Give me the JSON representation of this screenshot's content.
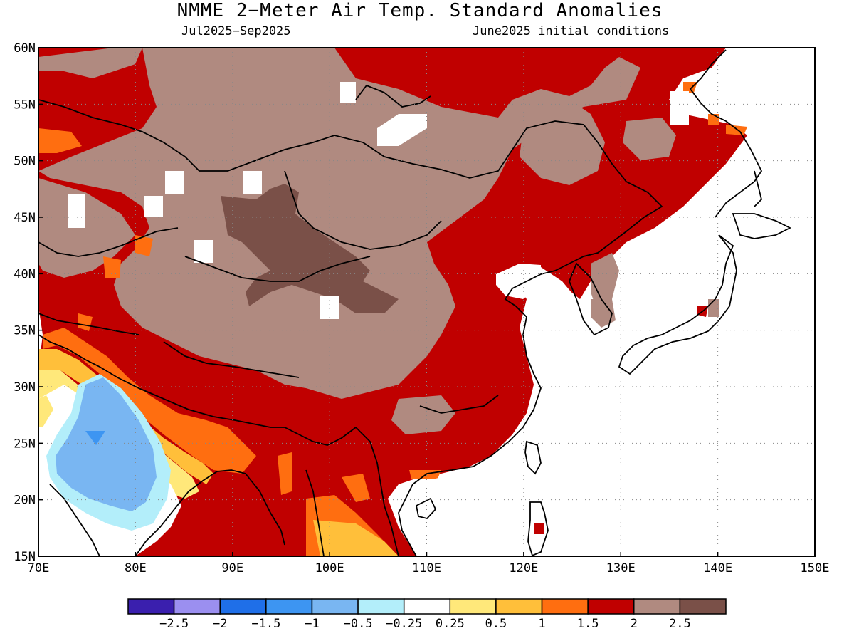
{
  "title": "NMME 2−Meter Air Temp. Standard Anomalies",
  "season": "Jul2025−Sep2025",
  "init": "June2025 initial conditions",
  "map": {
    "lon_range": [
      70,
      150
    ],
    "lat_range": [
      15,
      60
    ],
    "lon_ticks": [
      "70E",
      "80E",
      "90E",
      "100E",
      "110E",
      "120E",
      "130E",
      "140E",
      "150E"
    ],
    "lat_ticks": [
      "60N",
      "55N",
      "50N",
      "45N",
      "40N",
      "35N",
      "30N",
      "25N",
      "20N",
      "15N"
    ]
  },
  "colorbar": {
    "colors": [
      "#3a1fae",
      "#9b8ff0",
      "#1f6fe8",
      "#3d95f2",
      "#79b6f2",
      "#b3eefa",
      "#ffffff",
      "#ffe87a",
      "#ffbf3a",
      "#ff6e10",
      "#c00000",
      "#b08a80",
      "#7a5048"
    ],
    "labels": [
      "−2.5",
      "−2",
      "−1.5",
      "−1",
      "−0.5",
      "−0.25",
      "0.25",
      "0.5",
      "1",
      "1.5",
      "2",
      "2.5"
    ]
  },
  "colors": {
    "strong_warm": "#c00000",
    "very_strong_warm": "#b08a80",
    "extreme_warm": "#7a5048",
    "orange": "#ff6e10",
    "light_orange": "#ffbf3a",
    "yellow": "#ffe87a",
    "pale_blue": "#b3eefa",
    "light_blue": "#79b6f2",
    "blue": "#3d95f2"
  }
}
